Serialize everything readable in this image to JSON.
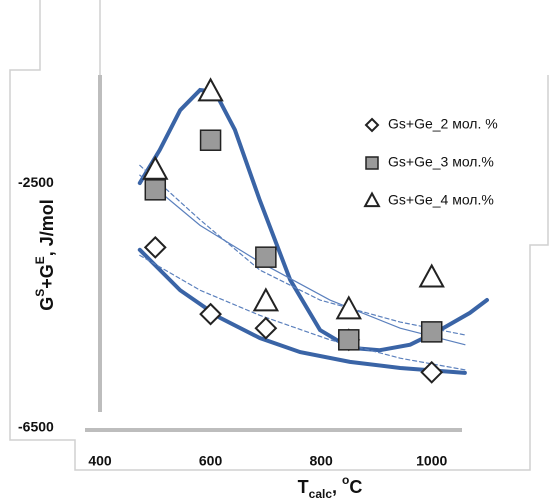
{
  "chart_data": {
    "type": "scatter",
    "x_label": [
      "T",
      "calc",
      ", ",
      "o",
      "C"
    ],
    "y_label": [
      "G",
      "S",
      "+G",
      "E",
      ", J/mol"
    ],
    "xlim": [
      400,
      1100
    ],
    "ylim": [
      -6500,
      -800
    ],
    "xticks": [
      400,
      600,
      800,
      1000
    ],
    "yticks": [
      -2500,
      -6500
    ],
    "legend": "upper right",
    "series": [
      {
        "name": "Gs+Ge_2  мол. %",
        "marker": "diamond",
        "color": "#ffffff",
        "x": [
          500,
          600,
          700,
          850,
          1000
        ],
        "y": [
          -3550,
          -4640,
          -4870,
          -5060,
          -5590
        ]
      },
      {
        "name": "Gs+Ge_3  мол.%",
        "marker": "square",
        "color": "#9a9a9a",
        "x": [
          500,
          600,
          700,
          850,
          1000
        ],
        "y": [
          -2610,
          -1800,
          -3710,
          -5060,
          -4930
        ]
      },
      {
        "name": "Gs+Ge_4  мол.%",
        "marker": "triangle",
        "color": "#ffffff",
        "x": [
          500,
          600,
          700,
          850,
          1000
        ],
        "y": [
          -2290,
          -1010,
          -4440,
          -4570,
          -4050
        ]
      }
    ],
    "trendlines": [
      {
        "color": "#3a64a6",
        "style": "thick",
        "x": [
          472,
          508,
          545,
          581,
          608,
          644,
          689,
          744,
          798,
          852,
          906,
          961,
          1015,
          1069,
          1100
        ],
        "y": [
          -2500,
          -1960,
          -1310,
          -980,
          -1010,
          -1630,
          -2780,
          -4080,
          -4900,
          -5190,
          -5230,
          -5140,
          -4900,
          -4620,
          -4410
        ]
      },
      {
        "color": "#3a64a6",
        "style": "thick",
        "x": [
          472,
          545,
          617,
          689,
          762,
          852,
          943,
          1060
        ],
        "y": [
          -3590,
          -4250,
          -4700,
          -5030,
          -5260,
          -5420,
          -5520,
          -5600
        ]
      },
      {
        "color": "#5b80bd",
        "style": "dashed",
        "x": [
          472,
          581,
          689,
          798,
          943,
          1060
        ],
        "y": [
          -2210,
          -3100,
          -3920,
          -4410,
          -4770,
          -4980
        ]
      },
      {
        "color": "#5b80bd",
        "style": "dashed",
        "x": [
          472,
          581,
          689,
          816,
          943,
          1060
        ],
        "y": [
          -3680,
          -4250,
          -4660,
          -5060,
          -5360,
          -5550
        ]
      },
      {
        "color": "#5b80bd",
        "style": "thin",
        "x": [
          472,
          581,
          689,
          816,
          943,
          1060
        ],
        "y": [
          -2370,
          -3190,
          -3790,
          -4410,
          -4870,
          -5140
        ]
      }
    ]
  }
}
